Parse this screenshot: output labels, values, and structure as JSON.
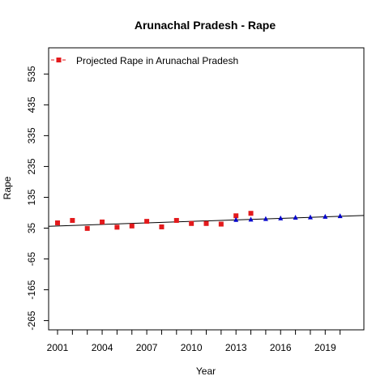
{
  "chart_data": {
    "type": "scatter",
    "title": "Arunachal  Pradesh  -  Rape",
    "xlabel": "Year",
    "ylabel": "Rape",
    "xlim": [
      2000.4,
      2021.6
    ],
    "ylim": [
      -295,
      620
    ],
    "x_ticks": [
      2001,
      2004,
      2007,
      2010,
      2013,
      2016,
      2019
    ],
    "x_minor_ticks": [
      2001,
      2002,
      2003,
      2004,
      2005,
      2006,
      2007,
      2008,
      2009,
      2010,
      2011,
      2012,
      2013,
      2014,
      2015,
      2016,
      2017,
      2018,
      2019,
      2020
    ],
    "y_ticks": [
      -265,
      -165,
      -65,
      35,
      135,
      235,
      335,
      435,
      535
    ],
    "legend": {
      "position": "top-left",
      "entries": [
        "Projected Rape in Arunachal Pradesh"
      ]
    },
    "colors": {
      "actual": "#e31a1c",
      "projected": "#0000cd",
      "trend": "#000000"
    },
    "series": [
      {
        "role": "actual",
        "marker": "square",
        "points": [
          {
            "x": 2001,
            "y": 52
          },
          {
            "x": 2002,
            "y": 60
          },
          {
            "x": 2003,
            "y": 34
          },
          {
            "x": 2004,
            "y": 55
          },
          {
            "x": 2005,
            "y": 38
          },
          {
            "x": 2006,
            "y": 42
          },
          {
            "x": 2007,
            "y": 57
          },
          {
            "x": 2008,
            "y": 39
          },
          {
            "x": 2009,
            "y": 60
          },
          {
            "x": 2010,
            "y": 50
          },
          {
            "x": 2011,
            "y": 50
          },
          {
            "x": 2012,
            "y": 48
          },
          {
            "x": 2013,
            "y": 75
          },
          {
            "x": 2014,
            "y": 83
          }
        ]
      },
      {
        "role": "projected",
        "marker": "triangle",
        "points": [
          {
            "x": 2013,
            "y": 62
          },
          {
            "x": 2014,
            "y": 63
          },
          {
            "x": 2015,
            "y": 65
          },
          {
            "x": 2016,
            "y": 67
          },
          {
            "x": 2017,
            "y": 69
          },
          {
            "x": 2018,
            "y": 70
          },
          {
            "x": 2019,
            "y": 72
          },
          {
            "x": 2020,
            "y": 74
          }
        ]
      }
    ],
    "trend_line": {
      "x": [
        2000.4,
        2021.6
      ],
      "y": [
        41,
        76
      ]
    }
  }
}
